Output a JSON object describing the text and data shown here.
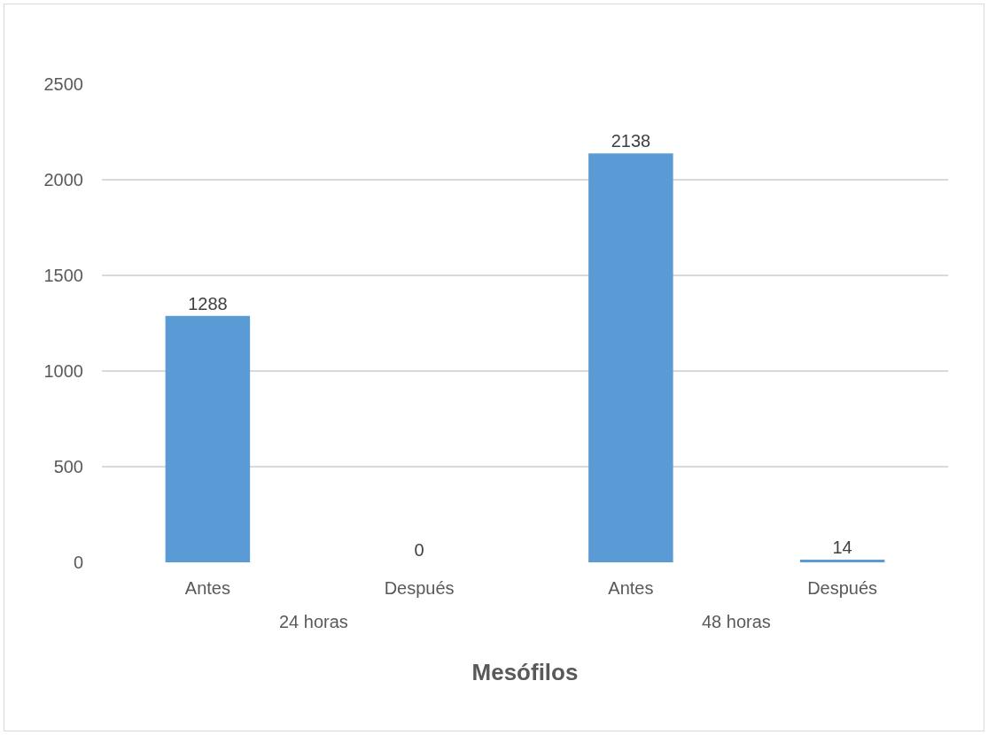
{
  "chart_data": {
    "type": "bar",
    "xlabel": "Mesófilos",
    "categories": [
      "Antes",
      "Después",
      "Antes",
      "Después"
    ],
    "values": [
      1288,
      0,
      2138,
      14
    ],
    "color": "#5b9bd5",
    "annotations": [
      "24 horas",
      "48 horas"
    ],
    "ylim": [
      0,
      2500
    ],
    "yticks": [
      0,
      500,
      1000,
      1500,
      2000,
      2500
    ],
    "grid": "y",
    "data_labels": true
  }
}
